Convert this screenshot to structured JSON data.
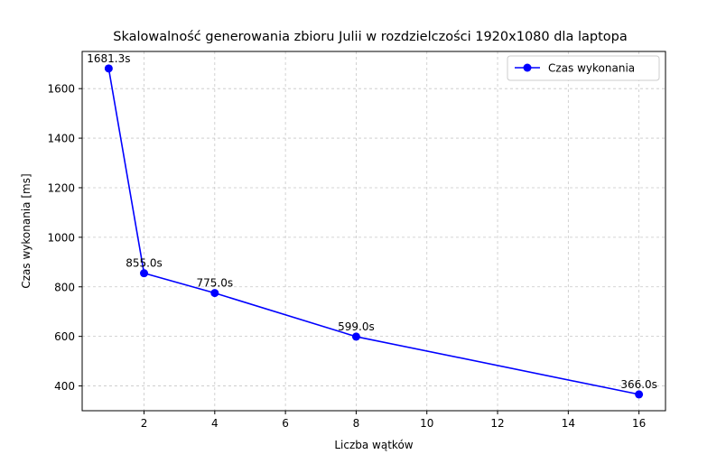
{
  "chart_data": {
    "type": "line",
    "title": "Skalowalność generowania zbioru Julii w rozdzielczości 1920x1080 dla laptopa",
    "xlabel": "Liczba wątków",
    "ylabel": "Czas wykonania [ms]",
    "xlim": [
      0.25,
      16.75
    ],
    "ylim": [
      300,
      1750
    ],
    "xticks": [
      2,
      4,
      6,
      8,
      10,
      12,
      14,
      16
    ],
    "yticks": [
      400,
      600,
      800,
      1000,
      1200,
      1400,
      1600
    ],
    "grid": true,
    "legend_position": "top-right",
    "series": [
      {
        "name": "Czas wykonania",
        "color": "#0000ff",
        "marker": "circle",
        "x": [
          1,
          2,
          4,
          8,
          16
        ],
        "y": [
          1681.3,
          855.0,
          775.0,
          599.0,
          366.0
        ],
        "labels": [
          "1681.3s",
          "855.0s",
          "775.0s",
          "599.0s",
          "366.0s"
        ]
      }
    ]
  }
}
